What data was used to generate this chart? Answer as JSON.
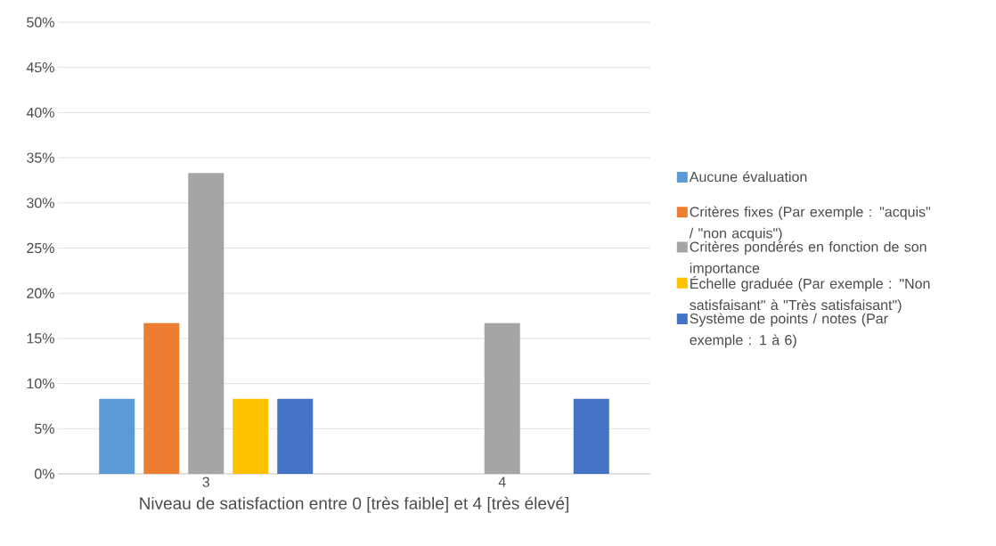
{
  "chart_data": {
    "type": "bar",
    "xlabel": "Niveau de satisfaction entre 0 [très faible] et 4 [très élevé]",
    "categories": [
      "3",
      "4"
    ],
    "series": [
      {
        "name": "Aucune évaluation",
        "color": "#5b9bd5",
        "values": [
          8.3,
          0
        ]
      },
      {
        "name": "Critères fixes (Par exemple : \"acquis\" / \"non acquis\")",
        "color": "#ed7d31",
        "values": [
          16.7,
          0
        ]
      },
      {
        "name": "Critères pondérés en fonction de son importance",
        "color": "#a5a5a5",
        "values": [
          33.3,
          16.7
        ]
      },
      {
        "name": "Échelle graduée (Par exemple : \"Non satisfaisant\" à \"Très satisfaisant\")",
        "color": "#ffc000",
        "values": [
          8.3,
          0
        ]
      },
      {
        "name": "Système de points / notes (Par exemple : 1 à 6)",
        "color": "#4472c4",
        "values": [
          8.3,
          8.3
        ]
      }
    ],
    "ylim": [
      0,
      50
    ],
    "yticks": [
      {
        "value": 0,
        "label": "0%"
      },
      {
        "value": 5,
        "label": "5%"
      },
      {
        "value": 10,
        "label": "10%"
      },
      {
        "value": 15,
        "label": "15%"
      },
      {
        "value": 20,
        "label": "20%"
      },
      {
        "value": 25,
        "label": "25%"
      },
      {
        "value": 30,
        "label": "30%"
      },
      {
        "value": 35,
        "label": "35%"
      },
      {
        "value": 40,
        "label": "40%"
      },
      {
        "value": 45,
        "label": "45%"
      },
      {
        "value": 50,
        "label": "50%"
      }
    ],
    "grid": "y",
    "legend": "right"
  }
}
